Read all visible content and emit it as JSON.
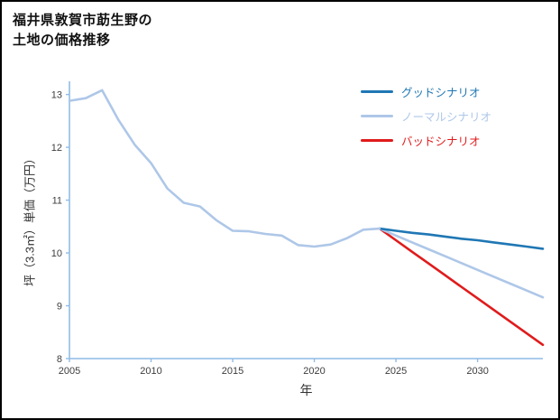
{
  "window": {
    "background": "#ffffff",
    "border_color": "#000000"
  },
  "title": {
    "line1": "福井県敦賀市莇生野の",
    "line2": "土地の価格推移"
  },
  "chart_data": {
    "type": "line",
    "title": "福井県敦賀市莇生野の土地の価格推移",
    "xlabel": "年",
    "ylabel": "坪（3.3㎡）単価（万円）",
    "xlim": [
      2005,
      2034
    ],
    "ylim": [
      8,
      13.25
    ],
    "xticks": [
      2005,
      2010,
      2015,
      2020,
      2025,
      2030
    ],
    "yticks": [
      8,
      9,
      10,
      11,
      12,
      13
    ],
    "grid": false,
    "legend_position": "upper right",
    "axis_color": "#8fbce6",
    "tick_label_color": "#3d3d3d",
    "series": [
      {
        "id": "history",
        "legend": null,
        "color": "#aec7e8",
        "x": [
          2005,
          2006,
          2007,
          2008,
          2009,
          2010,
          2011,
          2012,
          2013,
          2014,
          2015,
          2016,
          2017,
          2018,
          2019,
          2020,
          2021,
          2022,
          2023,
          2024
        ],
        "values": [
          12.88,
          12.93,
          13.08,
          12.52,
          12.05,
          11.7,
          11.22,
          10.95,
          10.88,
          10.62,
          10.42,
          10.41,
          10.36,
          10.33,
          10.15,
          10.12,
          10.16,
          10.28,
          10.44,
          10.46
        ]
      },
      {
        "id": "good",
        "legend": "グッドシナリオ",
        "color": "#1f77b4",
        "x": [
          2024,
          2025,
          2026,
          2027,
          2028,
          2029,
          2030,
          2031,
          2032,
          2033,
          2034
        ],
        "values": [
          10.46,
          10.42,
          10.38,
          10.35,
          10.31,
          10.27,
          10.24,
          10.2,
          10.16,
          10.12,
          10.08
        ]
      },
      {
        "id": "normal",
        "legend": "ノーマルシナリオ",
        "color": "#aec7e8",
        "x": [
          2024,
          2025,
          2026,
          2027,
          2028,
          2029,
          2030,
          2031,
          2032,
          2033,
          2034
        ],
        "values": [
          10.46,
          10.33,
          10.2,
          10.07,
          9.94,
          9.81,
          9.68,
          9.55,
          9.42,
          9.29,
          9.16
        ]
      },
      {
        "id": "bad",
        "legend": "バッドシナリオ",
        "color": "#e01b1c",
        "x": [
          2024,
          2025,
          2026,
          2027,
          2028,
          2029,
          2030,
          2031,
          2032,
          2033,
          2034
        ],
        "values": [
          10.46,
          10.24,
          10.02,
          9.8,
          9.58,
          9.36,
          9.14,
          8.92,
          8.7,
          8.48,
          8.26
        ]
      }
    ]
  }
}
